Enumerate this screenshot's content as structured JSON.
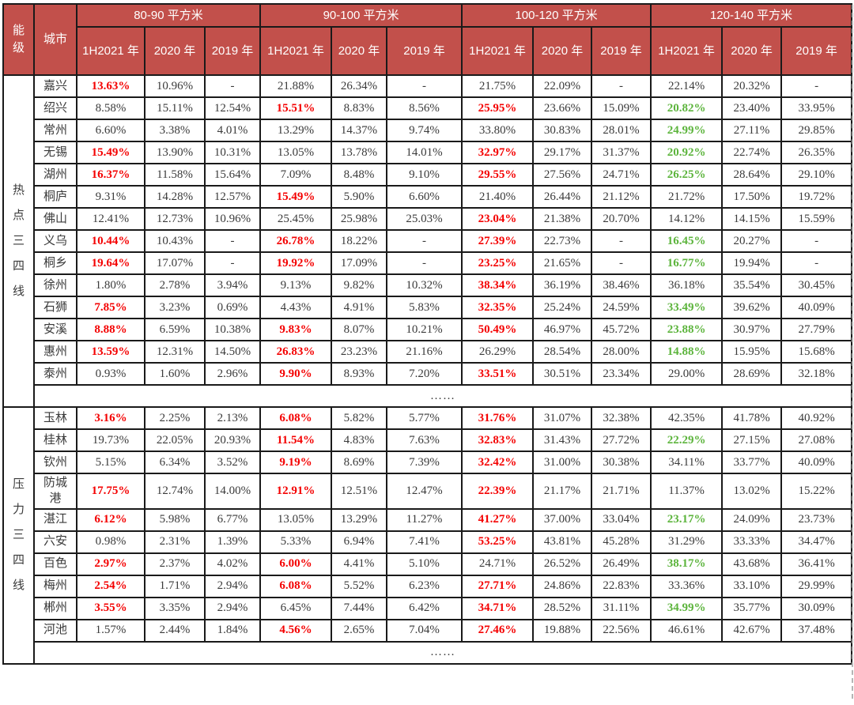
{
  "colors": {
    "header_bg": "#C2504B",
    "header_text": "#FFFFFF",
    "highlight_red": "#F40000",
    "highlight_green": "#5CB43C",
    "body_text": "#3A3A3A",
    "grid_border": "#1A1A1A",
    "page_edge_dash": "#B5B5B5"
  },
  "header": {
    "tier_label": "能级",
    "city_label": "城市",
    "groups": [
      {
        "label": "80-90 平方米",
        "subcols": [
          "1H2021 年",
          "2020 年",
          "2019 年"
        ]
      },
      {
        "label": "90-100 平方米",
        "subcols": [
          "1H2021 年",
          "2020 年",
          "2019 年"
        ]
      },
      {
        "label": "100-120 平方米",
        "subcols": [
          "1H2021 年",
          "2020 年",
          "2019 年"
        ]
      },
      {
        "label": "120-140 平方米",
        "subcols": [
          "1H2021 年",
          "2020 年",
          "2019 年"
        ]
      }
    ]
  },
  "sections": [
    {
      "tier": "热点三四线",
      "ellipsis": "……",
      "rows": [
        {
          "city": "嘉兴",
          "values": [
            "13.63%",
            "10.96%",
            "-",
            "21.88%",
            "26.34%",
            "-",
            "21.75%",
            "22.09%",
            "-",
            "22.14%",
            "20.32%",
            "-"
          ],
          "styles": [
            "r",
            "",
            "",
            "",
            "",
            "",
            "",
            "",
            "",
            "",
            "",
            ""
          ]
        },
        {
          "city": "绍兴",
          "values": [
            "8.58%",
            "15.11%",
            "12.54%",
            "15.51%",
            "8.83%",
            "8.56%",
            "25.95%",
            "23.66%",
            "15.09%",
            "20.82%",
            "23.40%",
            "33.95%"
          ],
          "styles": [
            "",
            "",
            "",
            "r",
            "",
            "",
            "r",
            "",
            "",
            "g",
            "",
            ""
          ]
        },
        {
          "city": "常州",
          "values": [
            "6.60%",
            "3.38%",
            "4.01%",
            "13.29%",
            "14.37%",
            "9.74%",
            "33.80%",
            "30.83%",
            "28.01%",
            "24.99%",
            "27.11%",
            "29.85%"
          ],
          "styles": [
            "",
            "",
            "",
            "",
            "",
            "",
            "",
            "",
            "",
            "g",
            "",
            ""
          ]
        },
        {
          "city": "无锡",
          "values": [
            "15.49%",
            "13.90%",
            "10.31%",
            "13.05%",
            "13.78%",
            "14.01%",
            "32.97%",
            "29.17%",
            "31.37%",
            "20.92%",
            "22.74%",
            "26.35%"
          ],
          "styles": [
            "r",
            "",
            "",
            "",
            "",
            "",
            "r",
            "",
            "",
            "g",
            "",
            ""
          ]
        },
        {
          "city": "湖州",
          "values": [
            "16.37%",
            "11.58%",
            "15.64%",
            "7.09%",
            "8.48%",
            "9.10%",
            "29.55%",
            "27.56%",
            "24.71%",
            "26.25%",
            "28.64%",
            "29.10%"
          ],
          "styles": [
            "r",
            "",
            "",
            "",
            "",
            "",
            "r",
            "",
            "",
            "g",
            "",
            ""
          ]
        },
        {
          "city": "桐庐",
          "values": [
            "9.31%",
            "14.28%",
            "12.57%",
            "15.49%",
            "5.90%",
            "6.60%",
            "21.40%",
            "26.44%",
            "21.12%",
            "21.72%",
            "17.50%",
            "19.72%"
          ],
          "styles": [
            "",
            "",
            "",
            "r",
            "",
            "",
            "",
            "",
            "",
            "",
            "",
            ""
          ]
        },
        {
          "city": "佛山",
          "values": [
            "12.41%",
            "12.73%",
            "10.96%",
            "25.45%",
            "25.98%",
            "25.03%",
            "23.04%",
            "21.38%",
            "20.70%",
            "14.12%",
            "14.15%",
            "15.59%"
          ],
          "styles": [
            "",
            "",
            "",
            "",
            "",
            "",
            "r",
            "",
            "",
            "",
            "",
            ""
          ]
        },
        {
          "city": "义乌",
          "values": [
            "10.44%",
            "10.43%",
            "-",
            "26.78%",
            "18.22%",
            "-",
            "27.39%",
            "22.73%",
            "-",
            "16.45%",
            "20.27%",
            "-"
          ],
          "styles": [
            "r",
            "",
            "",
            "r",
            "",
            "",
            "r",
            "",
            "",
            "g",
            "",
            ""
          ]
        },
        {
          "city": "桐乡",
          "values": [
            "19.64%",
            "17.07%",
            "-",
            "19.92%",
            "17.09%",
            "-",
            "23.25%",
            "21.65%",
            "-",
            "16.77%",
            "19.94%",
            "-"
          ],
          "styles": [
            "r",
            "",
            "",
            "r",
            "",
            "",
            "r",
            "",
            "",
            "g",
            "",
            ""
          ]
        },
        {
          "city": "徐州",
          "values": [
            "1.80%",
            "2.78%",
            "3.94%",
            "9.13%",
            "9.82%",
            "10.32%",
            "38.34%",
            "36.19%",
            "38.46%",
            "36.18%",
            "35.54%",
            "30.45%"
          ],
          "styles": [
            "",
            "",
            "",
            "",
            "",
            "",
            "r",
            "",
            "",
            "",
            "",
            ""
          ]
        },
        {
          "city": "石狮",
          "values": [
            "7.85%",
            "3.23%",
            "0.69%",
            "4.43%",
            "4.91%",
            "5.83%",
            "32.35%",
            "25.24%",
            "24.59%",
            "33.49%",
            "39.62%",
            "40.09%"
          ],
          "styles": [
            "r",
            "",
            "",
            "",
            "",
            "",
            "r",
            "",
            "",
            "g",
            "",
            ""
          ]
        },
        {
          "city": "安溪",
          "values": [
            "8.88%",
            "6.59%",
            "10.38%",
            "9.83%",
            "8.07%",
            "10.21%",
            "50.49%",
            "46.97%",
            "45.72%",
            "23.88%",
            "30.97%",
            "27.79%"
          ],
          "styles": [
            "r",
            "",
            "",
            "r",
            "",
            "",
            "r",
            "",
            "",
            "g",
            "",
            ""
          ]
        },
        {
          "city": "惠州",
          "values": [
            "13.59%",
            "12.31%",
            "14.50%",
            "26.83%",
            "23.23%",
            "21.16%",
            "26.29%",
            "28.54%",
            "28.00%",
            "14.88%",
            "15.95%",
            "15.68%"
          ],
          "styles": [
            "r",
            "",
            "",
            "r",
            "",
            "",
            "",
            "",
            "",
            "g",
            "",
            ""
          ]
        },
        {
          "city": "泰州",
          "values": [
            "0.93%",
            "1.60%",
            "2.96%",
            "9.90%",
            "8.93%",
            "7.20%",
            "33.51%",
            "30.51%",
            "23.34%",
            "29.00%",
            "28.69%",
            "32.18%"
          ],
          "styles": [
            "",
            "",
            "",
            "r",
            "",
            "",
            "r",
            "",
            "",
            "",
            "",
            ""
          ]
        }
      ]
    },
    {
      "tier": "压力三四线",
      "ellipsis": "……",
      "rows": [
        {
          "city": "玉林",
          "values": [
            "3.16%",
            "2.25%",
            "2.13%",
            "6.08%",
            "5.82%",
            "5.77%",
            "31.76%",
            "31.07%",
            "32.38%",
            "42.35%",
            "41.78%",
            "40.92%"
          ],
          "styles": [
            "r",
            "",
            "",
            "r",
            "",
            "",
            "r",
            "",
            "",
            "",
            "",
            ""
          ]
        },
        {
          "city": "桂林",
          "values": [
            "19.73%",
            "22.05%",
            "20.93%",
            "11.54%",
            "4.83%",
            "7.63%",
            "32.83%",
            "31.43%",
            "27.72%",
            "22.29%",
            "27.15%",
            "27.08%"
          ],
          "styles": [
            "",
            "",
            "",
            "r",
            "",
            "",
            "r",
            "",
            "",
            "g",
            "",
            ""
          ]
        },
        {
          "city": "钦州",
          "values": [
            "5.15%",
            "6.34%",
            "3.52%",
            "9.19%",
            "8.69%",
            "7.39%",
            "32.42%",
            "31.00%",
            "30.38%",
            "34.11%",
            "33.77%",
            "40.09%"
          ],
          "styles": [
            "",
            "",
            "",
            "r",
            "",
            "",
            "r",
            "",
            "",
            "",
            "",
            ""
          ]
        },
        {
          "city": "防城港",
          "values": [
            "17.75%",
            "12.74%",
            "14.00%",
            "12.91%",
            "12.51%",
            "12.47%",
            "22.39%",
            "21.17%",
            "21.71%",
            "11.37%",
            "13.02%",
            "15.22%"
          ],
          "styles": [
            "r",
            "",
            "",
            "r",
            "",
            "",
            "r",
            "",
            "",
            "",
            "",
            ""
          ]
        },
        {
          "city": "湛江",
          "values": [
            "6.12%",
            "5.98%",
            "6.77%",
            "13.05%",
            "13.29%",
            "11.27%",
            "41.27%",
            "37.00%",
            "33.04%",
            "23.17%",
            "24.09%",
            "23.73%"
          ],
          "styles": [
            "r",
            "",
            "",
            "",
            "",
            "",
            "r",
            "",
            "",
            "g",
            "",
            ""
          ]
        },
        {
          "city": "六安",
          "values": [
            "0.98%",
            "2.31%",
            "1.39%",
            "5.33%",
            "6.94%",
            "7.41%",
            "53.25%",
            "43.81%",
            "45.28%",
            "31.29%",
            "33.33%",
            "34.47%"
          ],
          "styles": [
            "",
            "",
            "",
            "",
            "",
            "",
            "r",
            "",
            "",
            "",
            "",
            ""
          ]
        },
        {
          "city": "百色",
          "values": [
            "2.97%",
            "2.37%",
            "4.02%",
            "6.00%",
            "4.41%",
            "5.10%",
            "24.71%",
            "26.52%",
            "26.49%",
            "38.17%",
            "43.68%",
            "36.41%"
          ],
          "styles": [
            "r",
            "",
            "",
            "r",
            "",
            "",
            "",
            "",
            "",
            "g",
            "",
            ""
          ]
        },
        {
          "city": "梅州",
          "values": [
            "2.54%",
            "1.71%",
            "2.94%",
            "6.08%",
            "5.52%",
            "6.23%",
            "27.71%",
            "24.86%",
            "22.83%",
            "33.36%",
            "33.10%",
            "29.99%"
          ],
          "styles": [
            "r",
            "",
            "",
            "r",
            "",
            "",
            "r",
            "",
            "",
            "",
            "",
            ""
          ]
        },
        {
          "city": "郴州",
          "values": [
            "3.55%",
            "3.35%",
            "2.94%",
            "6.45%",
            "7.44%",
            "6.42%",
            "34.71%",
            "28.52%",
            "31.11%",
            "34.99%",
            "35.77%",
            "30.09%"
          ],
          "styles": [
            "r",
            "",
            "",
            "",
            "",
            "",
            "r",
            "",
            "",
            "g",
            "",
            ""
          ]
        },
        {
          "city": "河池",
          "values": [
            "1.57%",
            "2.44%",
            "1.84%",
            "4.56%",
            "2.65%",
            "7.04%",
            "27.46%",
            "19.88%",
            "22.56%",
            "46.61%",
            "42.67%",
            "37.48%"
          ],
          "styles": [
            "",
            "",
            "",
            "r",
            "",
            "",
            "r",
            "",
            "",
            "",
            "",
            ""
          ]
        }
      ]
    }
  ]
}
